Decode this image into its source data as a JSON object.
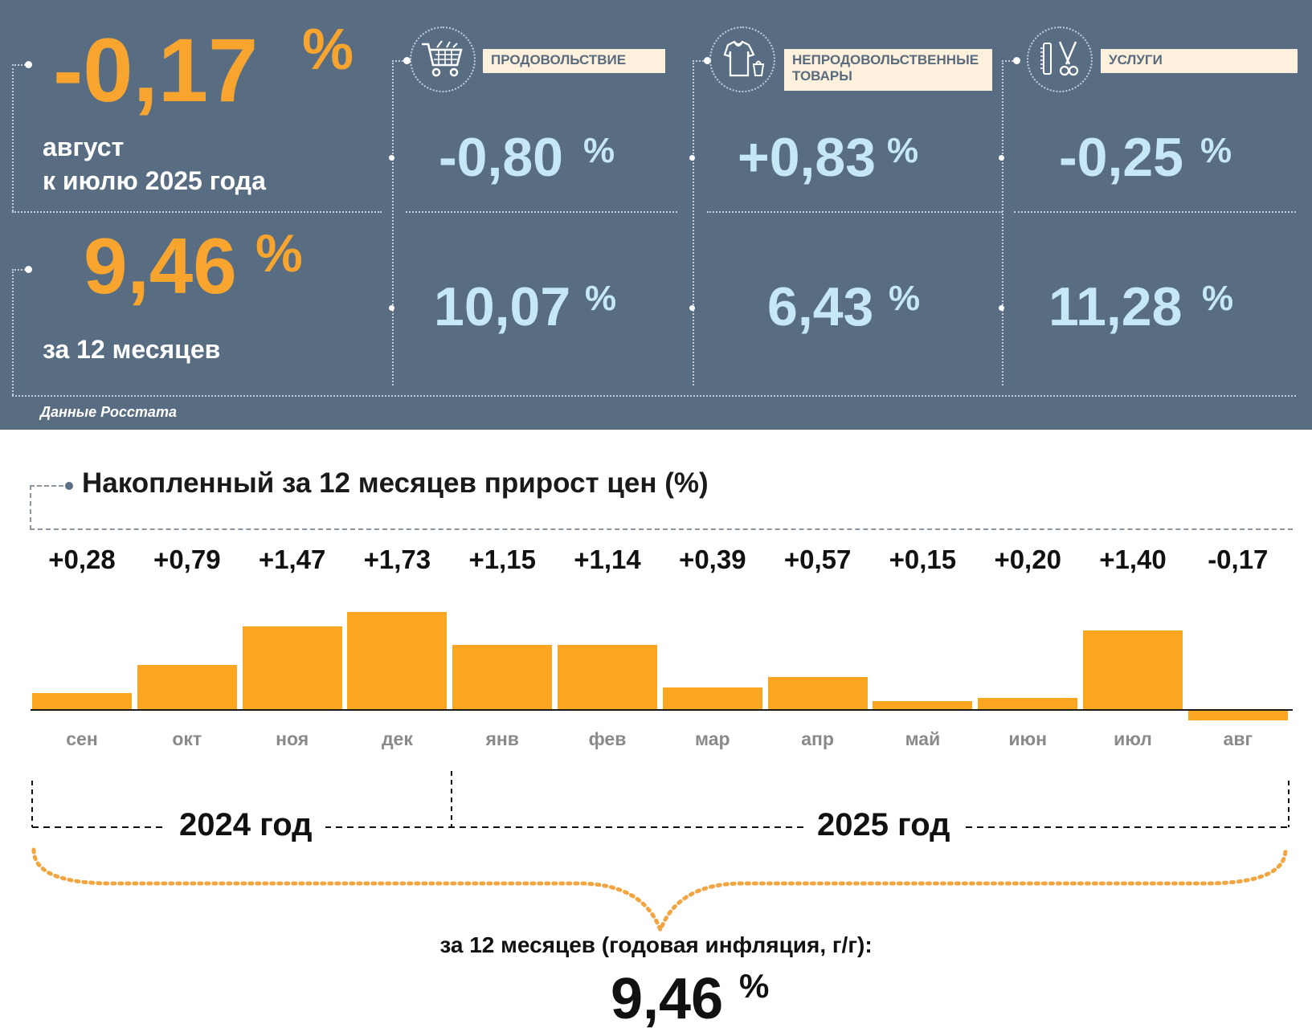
{
  "header": {
    "monthly": {
      "value": "-0,17",
      "unit": "%",
      "label_line1": "август",
      "label_line2": "к июлю 2025 года"
    },
    "annual": {
      "value": "9,46",
      "unit": "%",
      "label": "за 12 месяцев"
    },
    "categories": [
      {
        "icon": "shopping-cart-icon",
        "label": "ПРОДОВОЛЬСТВИЕ",
        "monthly": "-0,80",
        "annual": "10,07",
        "unit": "%"
      },
      {
        "icon": "clothing-icon",
        "label": "НЕПРОДОВОЛЬСТВЕННЫЕ ТОВАРЫ",
        "monthly": "+0,83",
        "annual": "6,43",
        "unit": "%"
      },
      {
        "icon": "scissors-comb-icon",
        "label": "УСЛУГИ",
        "monthly": "-0,25",
        "annual": "11,28",
        "unit": "%"
      }
    ],
    "source": "Данные Росстата"
  },
  "chart_data": {
    "type": "bar",
    "title": "Накопленный за 12 месяцев прирост цен (%)",
    "categories": [
      "сен",
      "окт",
      "ноя",
      "дек",
      "янв",
      "фев",
      "мар",
      "апр",
      "май",
      "июн",
      "июл",
      "авг"
    ],
    "values": [
      0.28,
      0.79,
      1.47,
      1.73,
      1.15,
      1.14,
      0.39,
      0.57,
      0.15,
      0.2,
      1.4,
      -0.17
    ],
    "value_labels": [
      "+0,28",
      "+0,79",
      "+1,47",
      "+1,73",
      "+1,15",
      "+1,14",
      "+0,39",
      "+0,57",
      "+0,15",
      "+0,20",
      "+1,40",
      "-0,17"
    ],
    "years": [
      {
        "label": "2024 год",
        "months": [
          "сен",
          "окт",
          "ноя",
          "дек"
        ]
      },
      {
        "label": "2025 год",
        "months": [
          "янв",
          "фев",
          "мар",
          "апр",
          "май",
          "июн",
          "июл",
          "авг"
        ]
      }
    ],
    "bar_color": "#fba620",
    "xlabel": "",
    "ylabel": ""
  },
  "summary": {
    "caption": "за 12 месяцев (годовая инфляция, г/г):",
    "value": "9,46",
    "unit": "%"
  },
  "colors": {
    "panel_bg": "#596d82",
    "accent_orange": "#f8a530",
    "value_light_blue": "#c6e7f7",
    "label_bg": "#fdf0dc"
  }
}
